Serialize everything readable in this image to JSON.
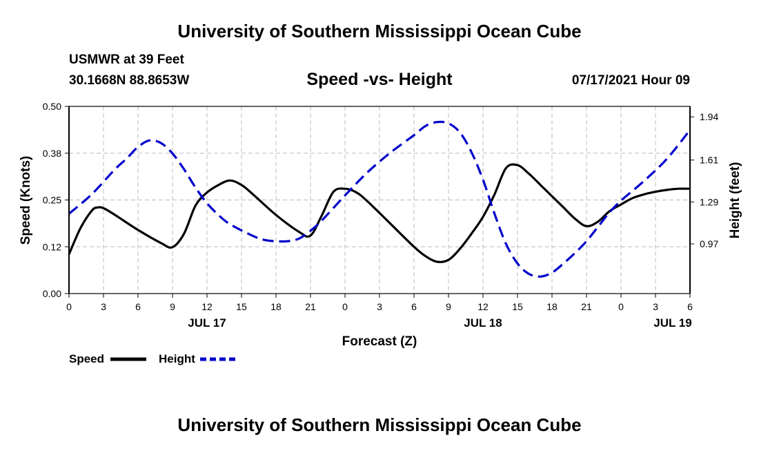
{
  "page": {
    "title_top": "University of Southern Mississippi Ocean Cube",
    "title_bottom": "University of Southern Mississippi Ocean Cube",
    "station": "USMWR at 39 Feet",
    "coords": "30.1668N  88.8653W",
    "chart_title": "Speed -vs- Height",
    "datetime": "07/17/2021 Hour 09"
  },
  "legend": {
    "speed_label": "Speed",
    "height_label": "Height"
  },
  "colors": {
    "speed": "#000000",
    "height": "#0000cc",
    "grid": "#bbbbbb"
  },
  "chart_data": {
    "type": "line",
    "title": "Speed -vs- Height",
    "xlabel": "Forecast (Z)",
    "ylabel_left": "Speed (Knots)",
    "ylabel_right": "Height (feet)",
    "grid": true,
    "x_unit": "hours from JUL 17 00Z",
    "xlim": [
      0,
      54
    ],
    "x_tick_positions": [
      0,
      3,
      6,
      9,
      12,
      15,
      18,
      21,
      24,
      27,
      30,
      33,
      36,
      39,
      42,
      45,
      48,
      51,
      54
    ],
    "x_tick_labels": [
      "0",
      "3",
      "6",
      "9",
      "12",
      "15",
      "18",
      "21",
      "0",
      "3",
      "6",
      "9",
      "12",
      "15",
      "18",
      "21",
      "0",
      "3",
      "6"
    ],
    "date_labels": [
      {
        "x": 12,
        "label": "JUL 17"
      },
      {
        "x": 36,
        "label": "JUL 18"
      },
      {
        "x": 52.5,
        "label": "JUL 19"
      }
    ],
    "ylim_left": [
      0,
      0.5
    ],
    "y_left_ticks": [
      0,
      0.125,
      0.25,
      0.375,
      0.5
    ],
    "y_left_tick_labels": [
      "0.00",
      "0.12",
      "0.25",
      "0.38",
      "0.50"
    ],
    "ylim_right": [
      0.59,
      2.02
    ],
    "y_right_ticks": [
      0.97,
      1.29,
      1.61,
      1.94
    ],
    "y_right_tick_labels": [
      "0.97",
      "1.29",
      "1.61",
      "1.94"
    ],
    "series": [
      {
        "name": "Speed",
        "axis": "left",
        "style": "solid",
        "x": [
          0,
          1,
          2,
          2.5,
          3,
          4,
          6,
          8,
          9,
          10,
          11,
          12,
          13,
          14,
          15,
          16,
          18,
          20,
          21,
          22,
          23,
          24,
          25,
          26,
          28,
          30,
          31,
          32,
          33,
          34,
          35,
          36,
          37,
          38,
          39,
          40,
          41,
          42,
          43,
          44,
          45,
          46,
          47,
          48,
          49,
          50,
          51,
          52,
          53,
          54
        ],
        "values": [
          0.105,
          0.175,
          0.222,
          0.23,
          0.228,
          0.21,
          0.17,
          0.135,
          0.124,
          0.16,
          0.235,
          0.27,
          0.29,
          0.302,
          0.29,
          0.265,
          0.21,
          0.165,
          0.155,
          0.21,
          0.272,
          0.28,
          0.27,
          0.245,
          0.185,
          0.125,
          0.1,
          0.085,
          0.09,
          0.12,
          0.16,
          0.205,
          0.265,
          0.335,
          0.343,
          0.32,
          0.29,
          0.26,
          0.23,
          0.2,
          0.18,
          0.192,
          0.22,
          0.238,
          0.255,
          0.265,
          0.272,
          0.277,
          0.28,
          0.28
        ]
      },
      {
        "name": "Height",
        "axis": "right",
        "style": "dashed",
        "x": [
          0,
          2,
          4,
          5,
          6,
          7,
          8,
          9,
          10,
          11,
          12,
          13,
          14,
          16,
          17,
          18,
          19,
          20,
          21,
          22,
          24,
          26,
          28,
          30,
          31,
          32,
          33,
          34,
          35,
          36,
          37,
          38,
          39,
          40,
          41,
          42,
          43,
          44,
          45,
          46,
          47,
          48,
          50,
          52,
          54
        ],
        "values": [
          1.2,
          1.35,
          1.54,
          1.62,
          1.71,
          1.76,
          1.74,
          1.66,
          1.54,
          1.4,
          1.28,
          1.19,
          1.12,
          1.03,
          1.0,
          0.99,
          0.99,
          1.01,
          1.07,
          1.15,
          1.34,
          1.52,
          1.67,
          1.8,
          1.87,
          1.9,
          1.89,
          1.82,
          1.67,
          1.46,
          1.2,
          0.97,
          0.82,
          0.74,
          0.72,
          0.75,
          0.82,
          0.9,
          0.99,
          1.1,
          1.21,
          1.3,
          1.45,
          1.62,
          1.84
        ]
      }
    ]
  }
}
